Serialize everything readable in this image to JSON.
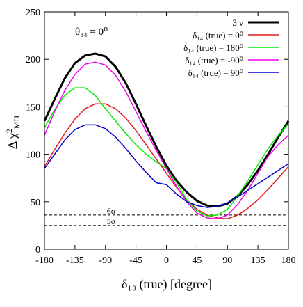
{
  "chart_data": {
    "type": "line",
    "annotation": "θ₃₄ = 0⁰",
    "xlabel": "δ₁₃ (true) [degree]",
    "ylabel_parts": [
      "Δ χ",
      "2",
      "MH"
    ],
    "x": [
      -180,
      -165,
      -150,
      -135,
      -120,
      -105,
      -90,
      -75,
      -60,
      -45,
      -30,
      -15,
      0,
      15,
      30,
      45,
      60,
      75,
      90,
      105,
      120,
      135,
      150,
      165,
      180
    ],
    "series": [
      {
        "name": "3 ν",
        "color": "#000000",
        "width": 3,
        "values": [
          135,
          158,
          180,
          196,
          204,
          206,
          203,
          192,
          175,
          153,
          130,
          108,
          88,
          72,
          60,
          51,
          46,
          45,
          48,
          56,
          68,
          83,
          100,
          118,
          135
        ]
      },
      {
        "name": "δ₁₄ (true) = 0⁰",
        "color": "#e41a1c",
        "width": 1.5,
        "values": [
          87,
          105,
          122,
          137,
          148,
          153,
          153,
          148,
          138,
          125,
          110,
          95,
          80,
          65,
          52,
          42,
          36,
          33,
          32,
          36,
          43,
          52,
          63,
          75,
          87
        ]
      },
      {
        "name": "δ₁₄ (true) = 180⁰",
        "color": "#00ee00",
        "width": 1.5,
        "values": [
          128,
          147,
          162,
          170,
          170,
          162,
          148,
          135,
          122,
          110,
          100,
          92,
          85,
          70,
          52,
          40,
          35,
          36,
          42,
          56,
          72,
          89,
          106,
          120,
          132
        ]
      },
      {
        "name": "δ₁₄ (true) = -90⁰",
        "color": "#ee00ee",
        "width": 1.5,
        "values": [
          120,
          145,
          167,
          184,
          195,
          197,
          194,
          183,
          166,
          145,
          124,
          104,
          85,
          66,
          50,
          38,
          33,
          32,
          36,
          47,
          62,
          80,
          98,
          110,
          120
        ]
      },
      {
        "name": "δ₁₄ (true) = 90⁰",
        "color": "#0000cc",
        "width": 1.5,
        "values": [
          85,
          100,
          115,
          126,
          131,
          131,
          127,
          118,
          106,
          93,
          81,
          70,
          68,
          58,
          50,
          46,
          44,
          45,
          49,
          55,
          62,
          69,
          76,
          83,
          90
        ]
      }
    ],
    "reference_lines": [
      {
        "value": 36,
        "label": "6σ"
      },
      {
        "value": 25,
        "label": "5σ"
      }
    ],
    "xlim": [
      -180,
      180
    ],
    "xticks": [
      -180,
      -135,
      -90,
      -45,
      0,
      45,
      90,
      135,
      180
    ],
    "ylim": [
      0,
      250
    ],
    "yticks": [
      0,
      50,
      100,
      150,
      200,
      250
    ],
    "grid": false,
    "legend": "upper right"
  }
}
